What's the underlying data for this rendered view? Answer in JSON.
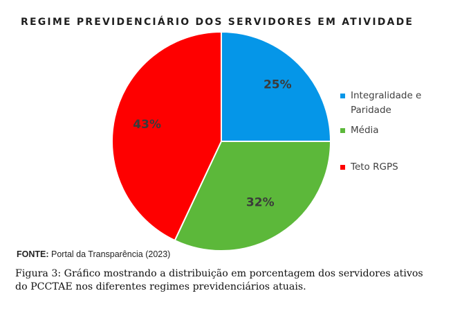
{
  "chart_data": {
    "type": "pie",
    "title": "REGIME PREVIDENCIÁRIO DOS SERVIDORES EM ATIVIDADE",
    "categories": [
      "Integralidade e Paridade",
      "Média",
      "Teto RGPS"
    ],
    "values": [
      25,
      32,
      43
    ],
    "data_labels": [
      "25%",
      "32%",
      "43%"
    ],
    "colors": [
      "#0596e8",
      "#5cb83a",
      "#fe0000"
    ],
    "legend_position": "right",
    "start_angle_deg": 0,
    "direction": "clockwise"
  },
  "source": {
    "label": "FONTE:",
    "text": "Portal da Transparência (2023)"
  },
  "caption": "Figura 3: Gráfico mostrando a distribuição em porcentagem dos servidores ativos do PCCTAE nos diferentes regimes previdenciários atuais."
}
